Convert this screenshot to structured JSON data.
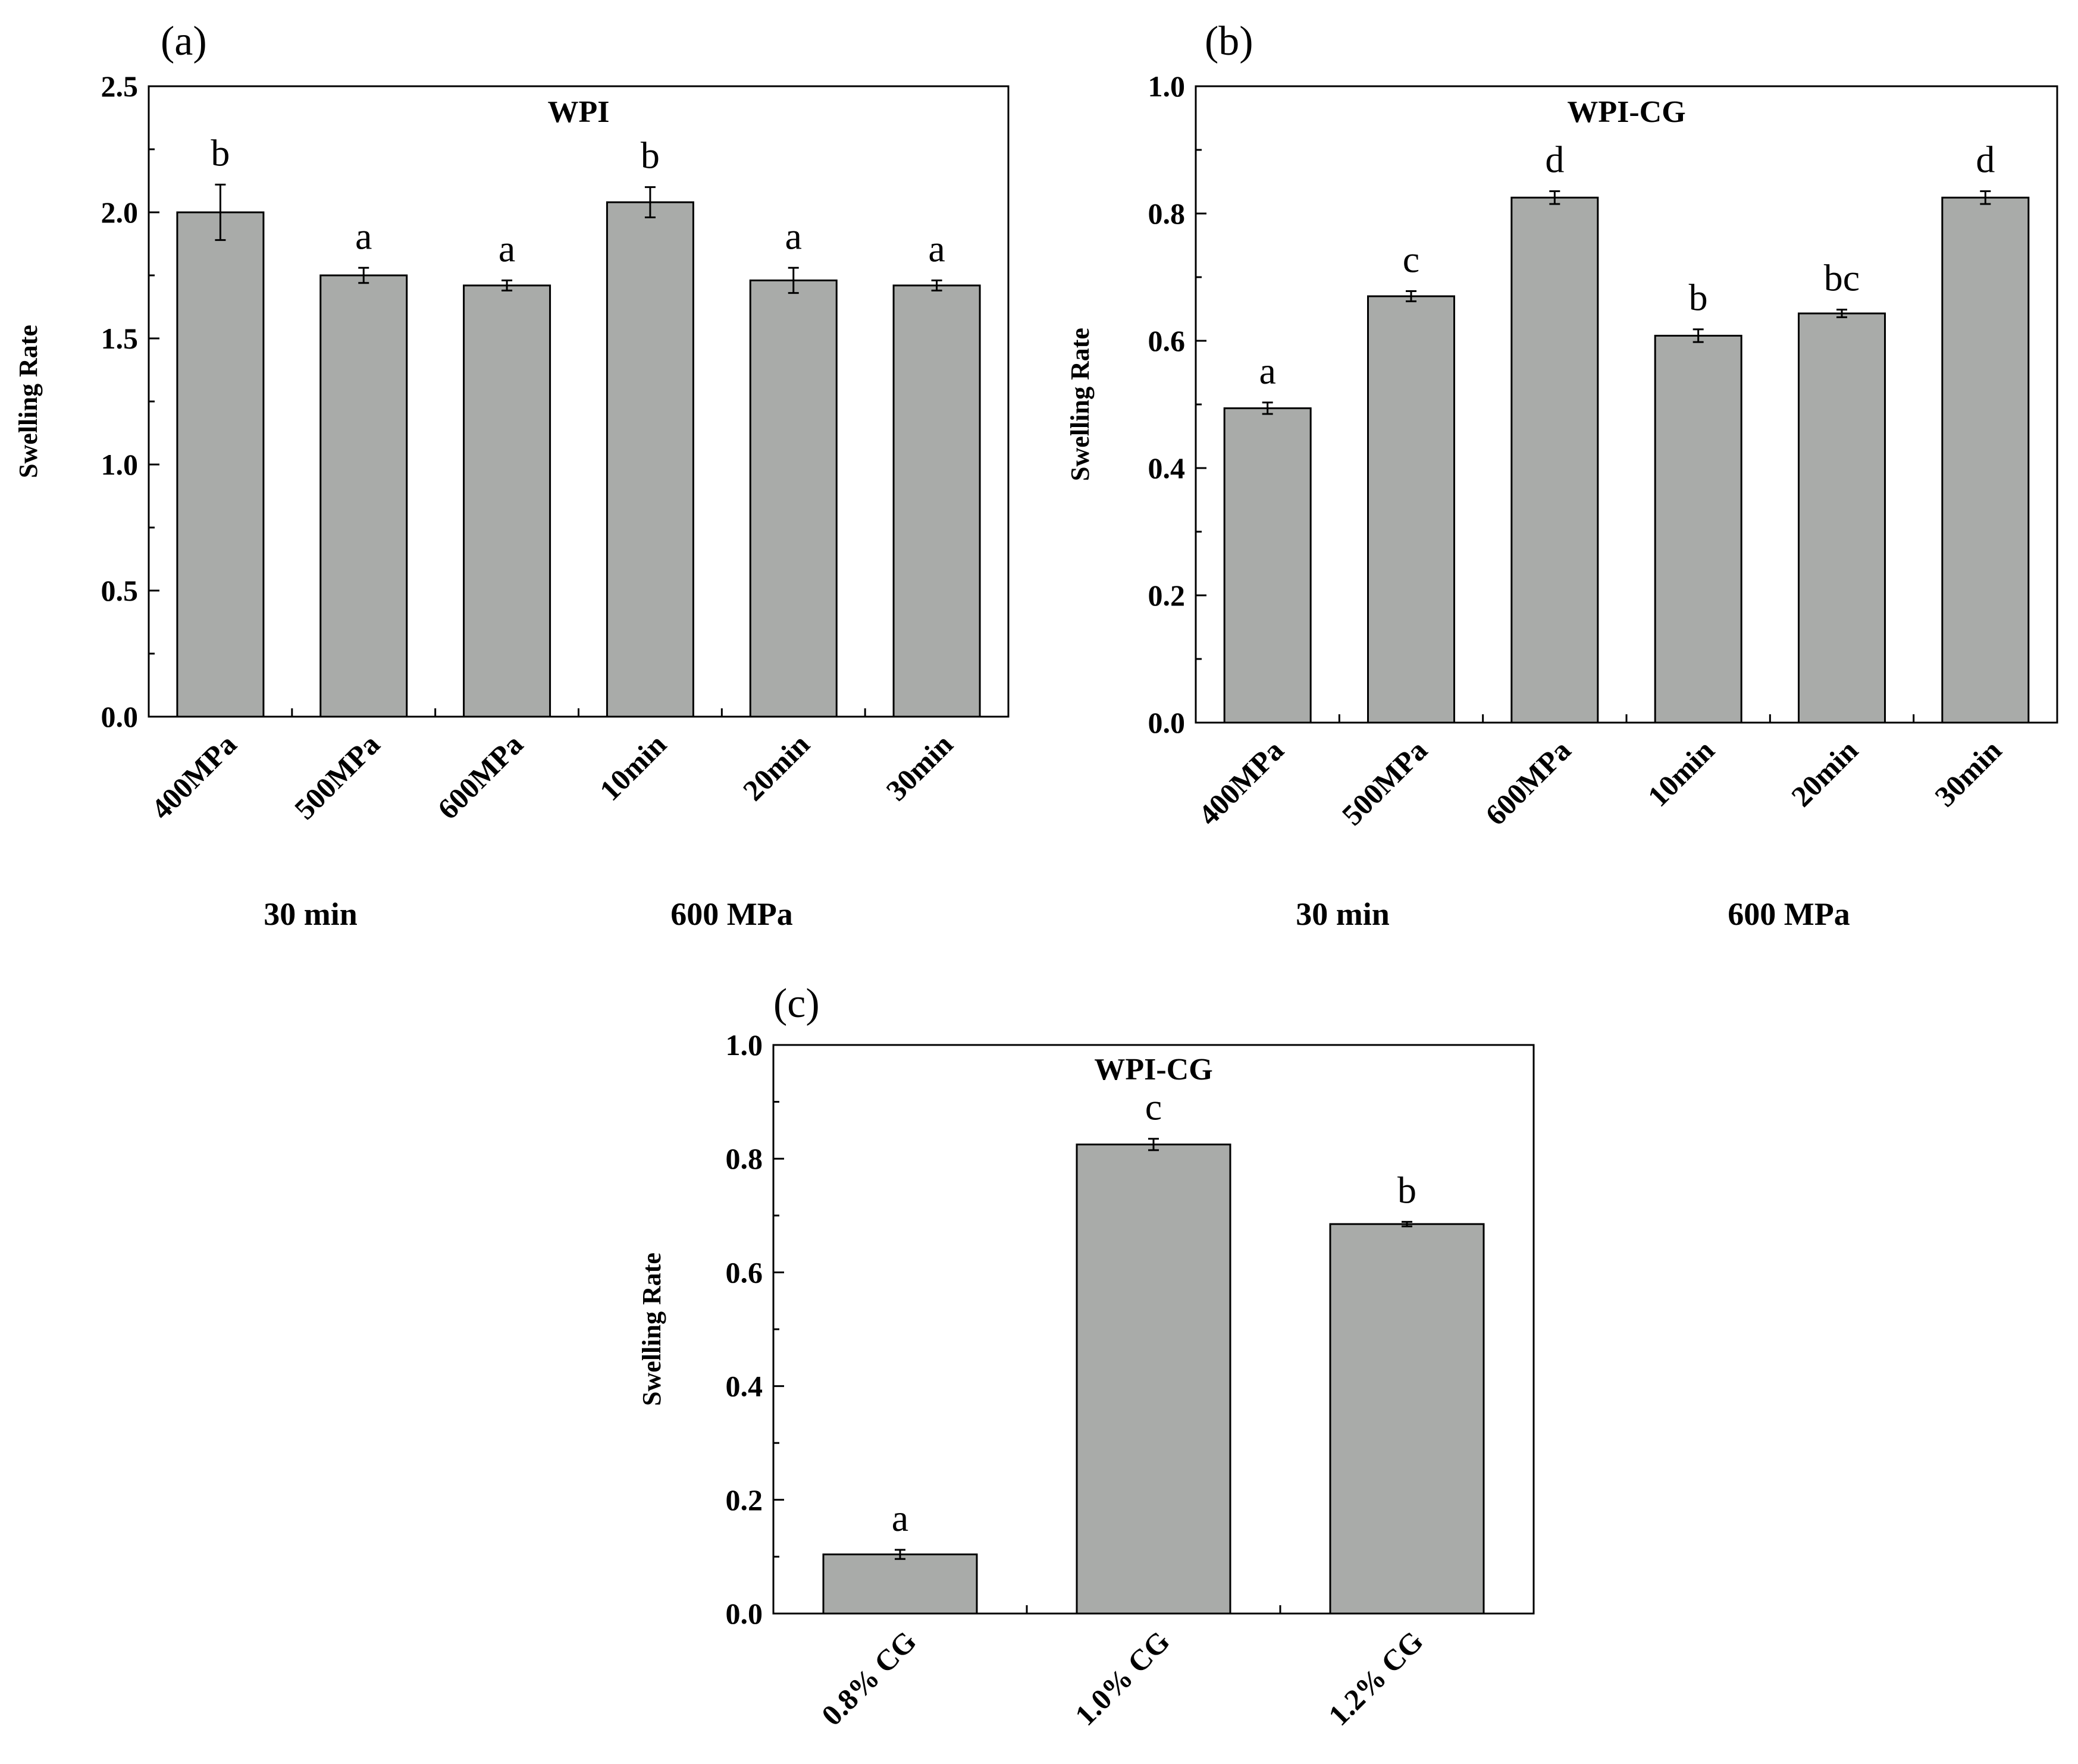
{
  "chart_data": [
    {
      "type": "bar",
      "panel_label": "(a)",
      "title": "WPI",
      "ylabel": "Swelling Rate",
      "ylim": [
        0,
        2.5
      ],
      "yticks": [
        "0.0",
        "0.5",
        "1.0",
        "1.5",
        "2.0",
        "2.5"
      ],
      "categories": [
        "400MPa",
        "500MPa",
        "600MPa",
        "10min",
        "20min",
        "30min"
      ],
      "values": [
        2.0,
        1.75,
        1.71,
        2.04,
        1.73,
        1.71
      ],
      "errors": [
        0.11,
        0.03,
        0.02,
        0.06,
        0.05,
        0.02
      ],
      "significance": [
        "b",
        "a",
        "a",
        "b",
        "a",
        "a"
      ],
      "group_labels": [
        "30 min",
        "600 MPa"
      ],
      "bar_color": "#a9aba9"
    },
    {
      "type": "bar",
      "panel_label": "(b)",
      "title": "WPI-CG",
      "ylabel": "Swelling Rate",
      "ylim": [
        0,
        1.0
      ],
      "yticks": [
        "0.0",
        "0.2",
        "0.4",
        "0.6",
        "0.8",
        "1.0"
      ],
      "categories": [
        "400MPa",
        "500MPa",
        "600MPa",
        "10min",
        "20min",
        "30min"
      ],
      "values": [
        0.494,
        0.67,
        0.825,
        0.608,
        0.643,
        0.825
      ],
      "errors": [
        0.009,
        0.008,
        0.01,
        0.01,
        0.006,
        0.01
      ],
      "significance": [
        "a",
        "c",
        "d",
        "b",
        "bc",
        "d"
      ],
      "group_labels": [
        "30 min",
        "600 MPa"
      ],
      "bar_color": "#a9aba9"
    },
    {
      "type": "bar",
      "panel_label": "(c)",
      "title": "WPI-CG",
      "ylabel": "Swelling Rate",
      "ylim": [
        0,
        1.0
      ],
      "yticks": [
        "0.0",
        "0.2",
        "0.4",
        "0.6",
        "0.8",
        "1.0"
      ],
      "categories": [
        "0.8% CG",
        "1.0% CG",
        "1.2% CG"
      ],
      "values": [
        0.104,
        0.825,
        0.685
      ],
      "errors": [
        0.008,
        0.01,
        0.004
      ],
      "significance": [
        "a",
        "c",
        "b"
      ],
      "group_labels": [],
      "bar_color": "#a9aba9"
    }
  ]
}
